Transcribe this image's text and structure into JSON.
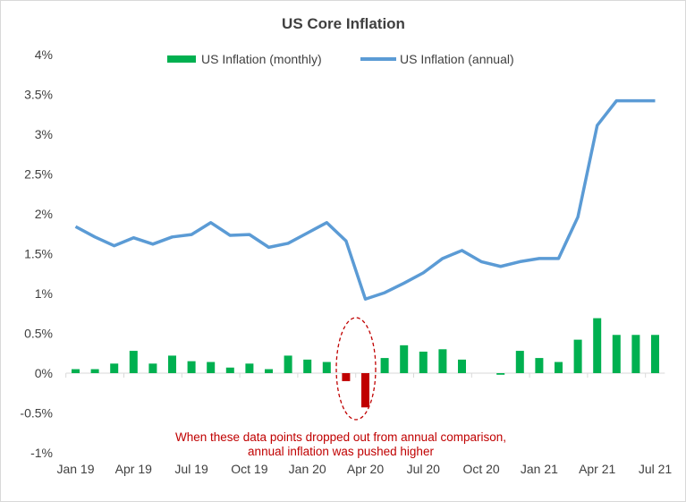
{
  "chart_data": {
    "type": "bar+line",
    "title": "US Core Inflation",
    "categories": [
      "Jan 19",
      "Feb 19",
      "Mar 19",
      "Apr 19",
      "May 19",
      "Jun 19",
      "Jul 19",
      "Aug 19",
      "Sep 19",
      "Oct 19",
      "Nov 19",
      "Dec 19",
      "Jan 20",
      "Feb 20",
      "Mar 20",
      "Apr 20",
      "May 20",
      "Jun 20",
      "Jul 20",
      "Aug 20",
      "Sep 20",
      "Oct 20",
      "Nov 20",
      "Dec 20",
      "Jan 21",
      "Feb 21",
      "Mar 21",
      "Apr 21",
      "May 21",
      "Jun 21",
      "Jul 21"
    ],
    "x_tick_labels": [
      "Jan 19",
      "Apr 19",
      "Jul 19",
      "Oct 19",
      "Jan 20",
      "Apr 20",
      "Jul 20",
      "Oct 20",
      "Jan 21",
      "Apr 21",
      "Jul 21"
    ],
    "y_tick_labels": [
      "4%",
      "3.5%",
      "3%",
      "2.5%",
      "2%",
      "1.5%",
      "1%",
      "0.5%",
      "0%",
      "-0.5%",
      "-1%"
    ],
    "ylim": [
      -1,
      4
    ],
    "yunit": "%",
    "grid": false,
    "legend_placement": "top",
    "series": [
      {
        "name": "US Inflation (monthly)",
        "kind": "bar",
        "color": "#00b050",
        "highlight_color": "#c00000",
        "values": [
          0.05,
          0.05,
          0.12,
          0.28,
          0.12,
          0.22,
          0.15,
          0.14,
          0.07,
          0.12,
          0.05,
          0.22,
          0.17,
          0.14,
          -0.1,
          -0.43,
          0.19,
          0.35,
          0.27,
          0.3,
          0.17,
          0,
          -0.02,
          0.28,
          0.19,
          0.14,
          0.42,
          0.69,
          0.48,
          0.48,
          0.48
        ],
        "highlighted": [
          "Mar 20",
          "Apr 20"
        ]
      },
      {
        "name": "US Inflation (annual)",
        "kind": "line",
        "color": "#5b9bd5",
        "values": [
          1.84,
          1.71,
          1.6,
          1.7,
          1.62,
          1.71,
          1.74,
          1.89,
          1.73,
          1.74,
          1.58,
          1.63,
          1.76,
          1.89,
          1.66,
          0.93,
          1.01,
          1.13,
          1.26,
          1.44,
          1.54,
          1.4,
          1.34,
          1.4,
          1.44,
          1.44,
          1.96,
          3.11,
          3.42,
          3.42,
          3.42
        ]
      }
    ],
    "annotation": {
      "lines": [
        "When these data points dropped out from annual comparison,",
        "annual inflation was pushed higher"
      ],
      "color": "#c00000"
    }
  }
}
